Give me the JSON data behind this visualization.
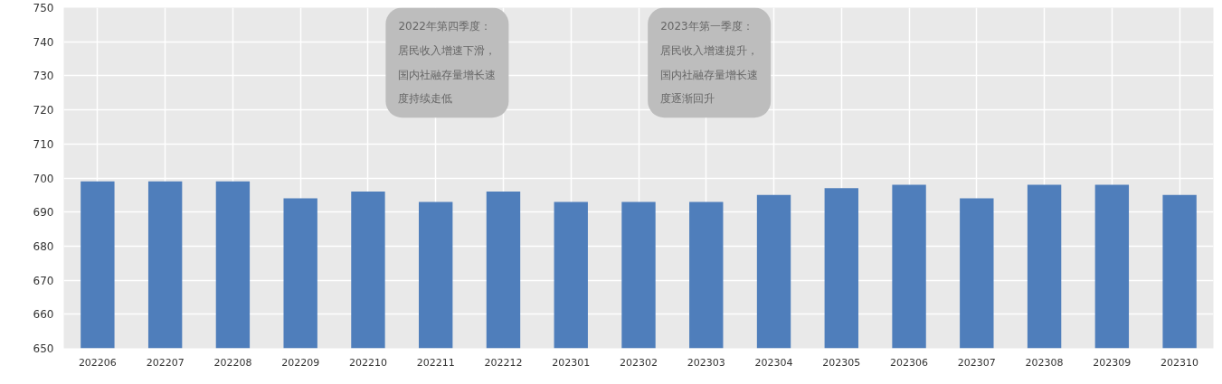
{
  "chart_data": {
    "type": "bar",
    "categories": [
      "202206",
      "202207",
      "202208",
      "202209",
      "202210",
      "202211",
      "202212",
      "202301",
      "202302",
      "202303",
      "202304",
      "202305",
      "202306",
      "202307",
      "202308",
      "202309",
      "202310"
    ],
    "values": [
      699,
      699,
      699,
      694,
      696,
      693,
      696,
      693,
      693,
      693,
      695,
      697,
      698,
      694,
      698,
      698,
      695
    ],
    "color": "#4f7ebb",
    "ylim": [
      650,
      750
    ],
    "yticks": [
      650,
      660,
      670,
      680,
      690,
      700,
      710,
      720,
      730,
      740,
      750
    ],
    "grid": true,
    "annotations": [
      "2022年第四季度：居民收入增速下滑，国内社融存量增长速度持续走低",
      "2023年第一季度：居民收入增速提升，国内社融存量增长速度逐渐回升"
    ]
  }
}
